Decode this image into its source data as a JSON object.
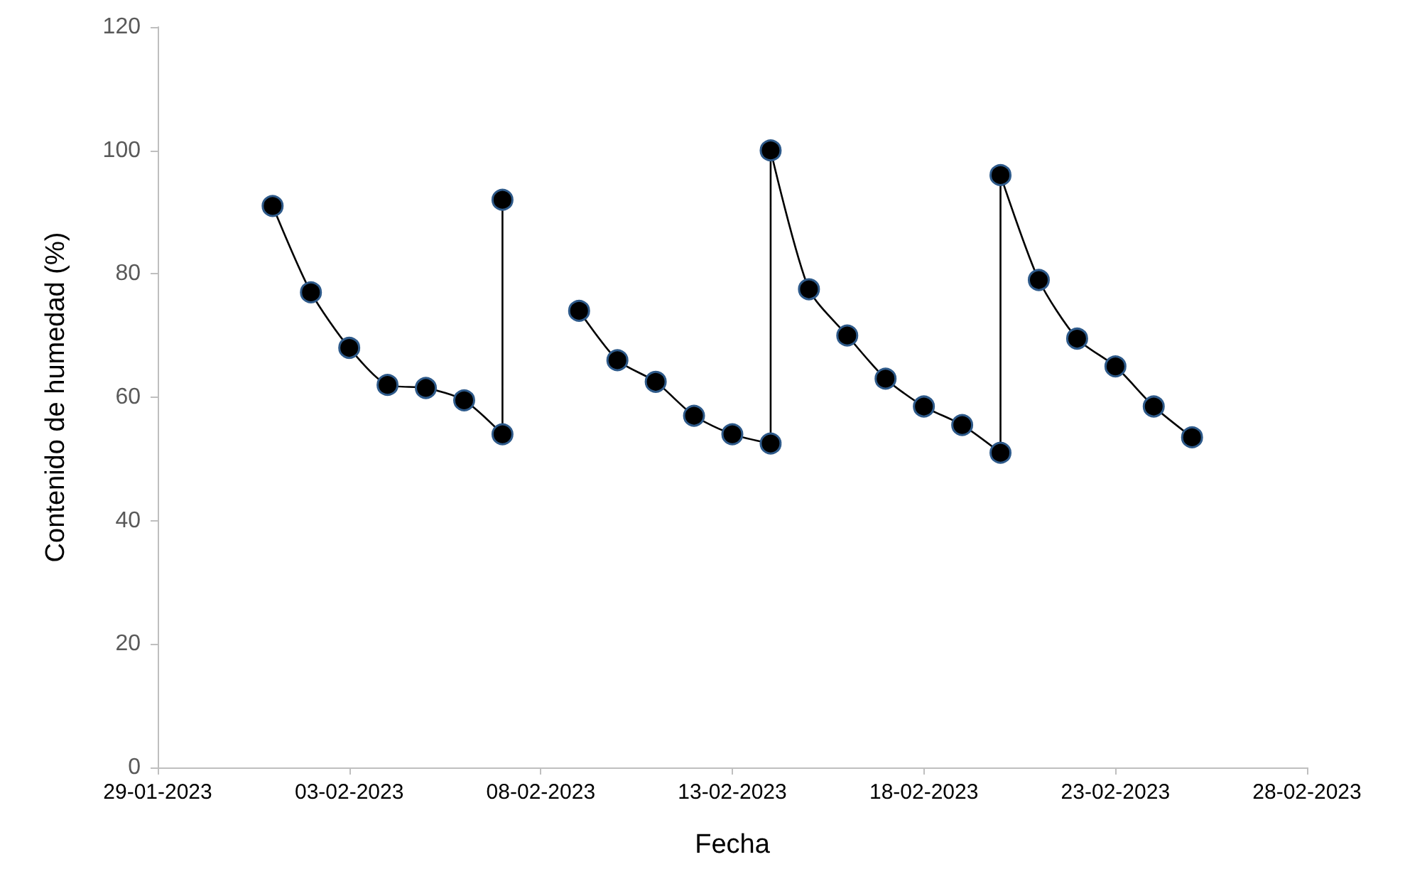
{
  "chart_data": {
    "type": "line",
    "xlabel": "Fecha",
    "ylabel": "Contenido de humedad (%)",
    "x": [
      "2023-02-01",
      "2023-02-02",
      "2023-02-03",
      "2023-02-04",
      "2023-02-05",
      "2023-02-06",
      "2023-02-07",
      "2023-02-07",
      "2023-02-08",
      "2023-02-09",
      "2023-02-10",
      "2023-02-11",
      "2023-02-12",
      "2023-02-13",
      "2023-02-14",
      "2023-02-14",
      "2023-02-15",
      "2023-02-16",
      "2023-02-17",
      "2023-02-18",
      "2023-02-19",
      "2023-02-20",
      "2023-02-20",
      "2023-02-21",
      "2023-02-22",
      "2023-02-23",
      "2023-02-24",
      "2023-02-25"
    ],
    "series": [
      {
        "color": "#000000",
        "values": [
          91,
          77,
          68,
          62,
          61.5,
          59.5,
          54,
          92,
          null,
          74,
          66,
          62.5,
          57,
          54,
          52.5,
          100,
          77.5,
          70,
          63,
          58.5,
          55.5,
          51,
          96,
          79,
          69.5,
          65,
          58.5,
          53.5
        ]
      }
    ],
    "xlim": [
      "2023-01-29",
      "2023-02-28"
    ],
    "xticks": [
      {
        "value": "2023-01-29",
        "label": "29-01-2023"
      },
      {
        "value": "2023-02-03",
        "label": "03-02-2023"
      },
      {
        "value": "2023-02-08",
        "label": "08-02-2023"
      },
      {
        "value": "2023-02-13",
        "label": "13-02-2023"
      },
      {
        "value": "2023-02-18",
        "label": "18-02-2023"
      },
      {
        "value": "2023-02-23",
        "label": "23-02-2023"
      },
      {
        "value": "2023-02-28",
        "label": "28-02-2023"
      }
    ],
    "ylim": [
      0,
      120
    ],
    "yticks": [
      0,
      20,
      40,
      60,
      80,
      100,
      120
    ],
    "marker": "circle",
    "line_style": "solid"
  }
}
